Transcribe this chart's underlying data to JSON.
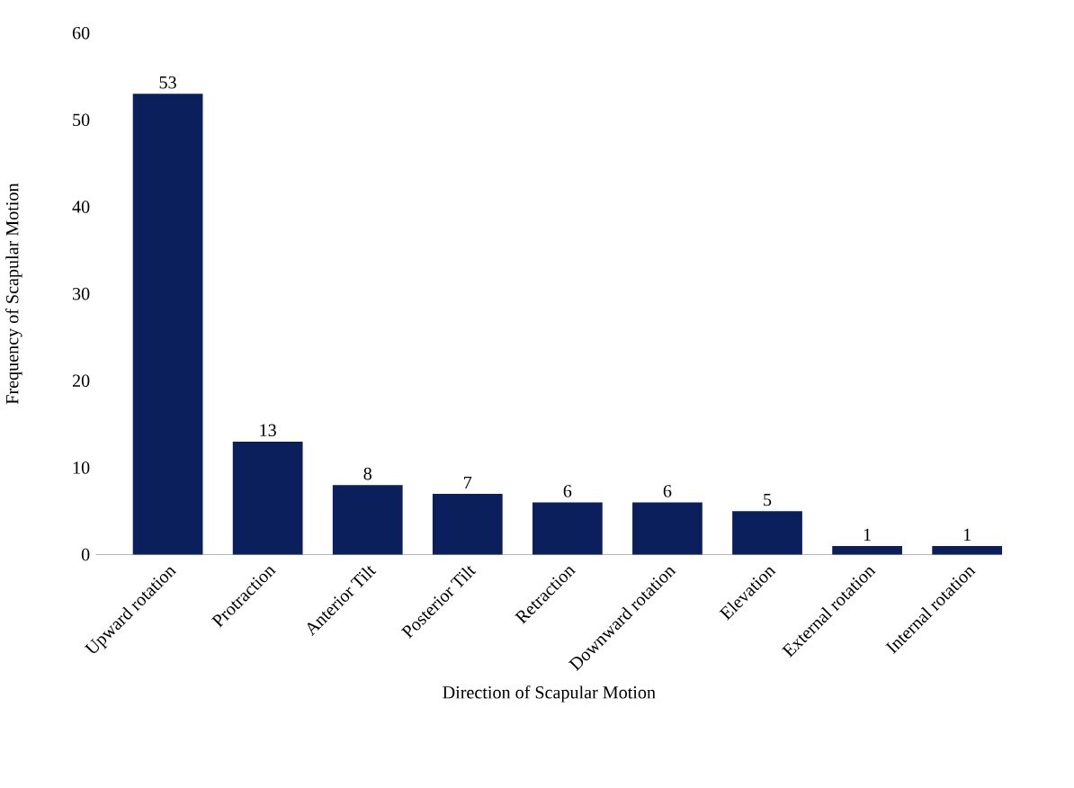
{
  "chart_data": {
    "type": "bar",
    "xlabel": "Direction of Scapular Motion",
    "ylabel": "Frequency of Scapular Motion",
    "categories": [
      "Upward rotation",
      "Protraction",
      "Anterior Tilt",
      "Posterior Tilt",
      "Retraction",
      "Downward rotation",
      "Elevation",
      "External rotation",
      "Internal rotation"
    ],
    "values": [
      53,
      13,
      8,
      7,
      6,
      6,
      5,
      1,
      1
    ],
    "color": "#0b1f5c",
    "ylim": [
      0,
      60
    ],
    "yticks": [
      0,
      10,
      20,
      30,
      40,
      50,
      60
    ],
    "data_labels": true
  }
}
